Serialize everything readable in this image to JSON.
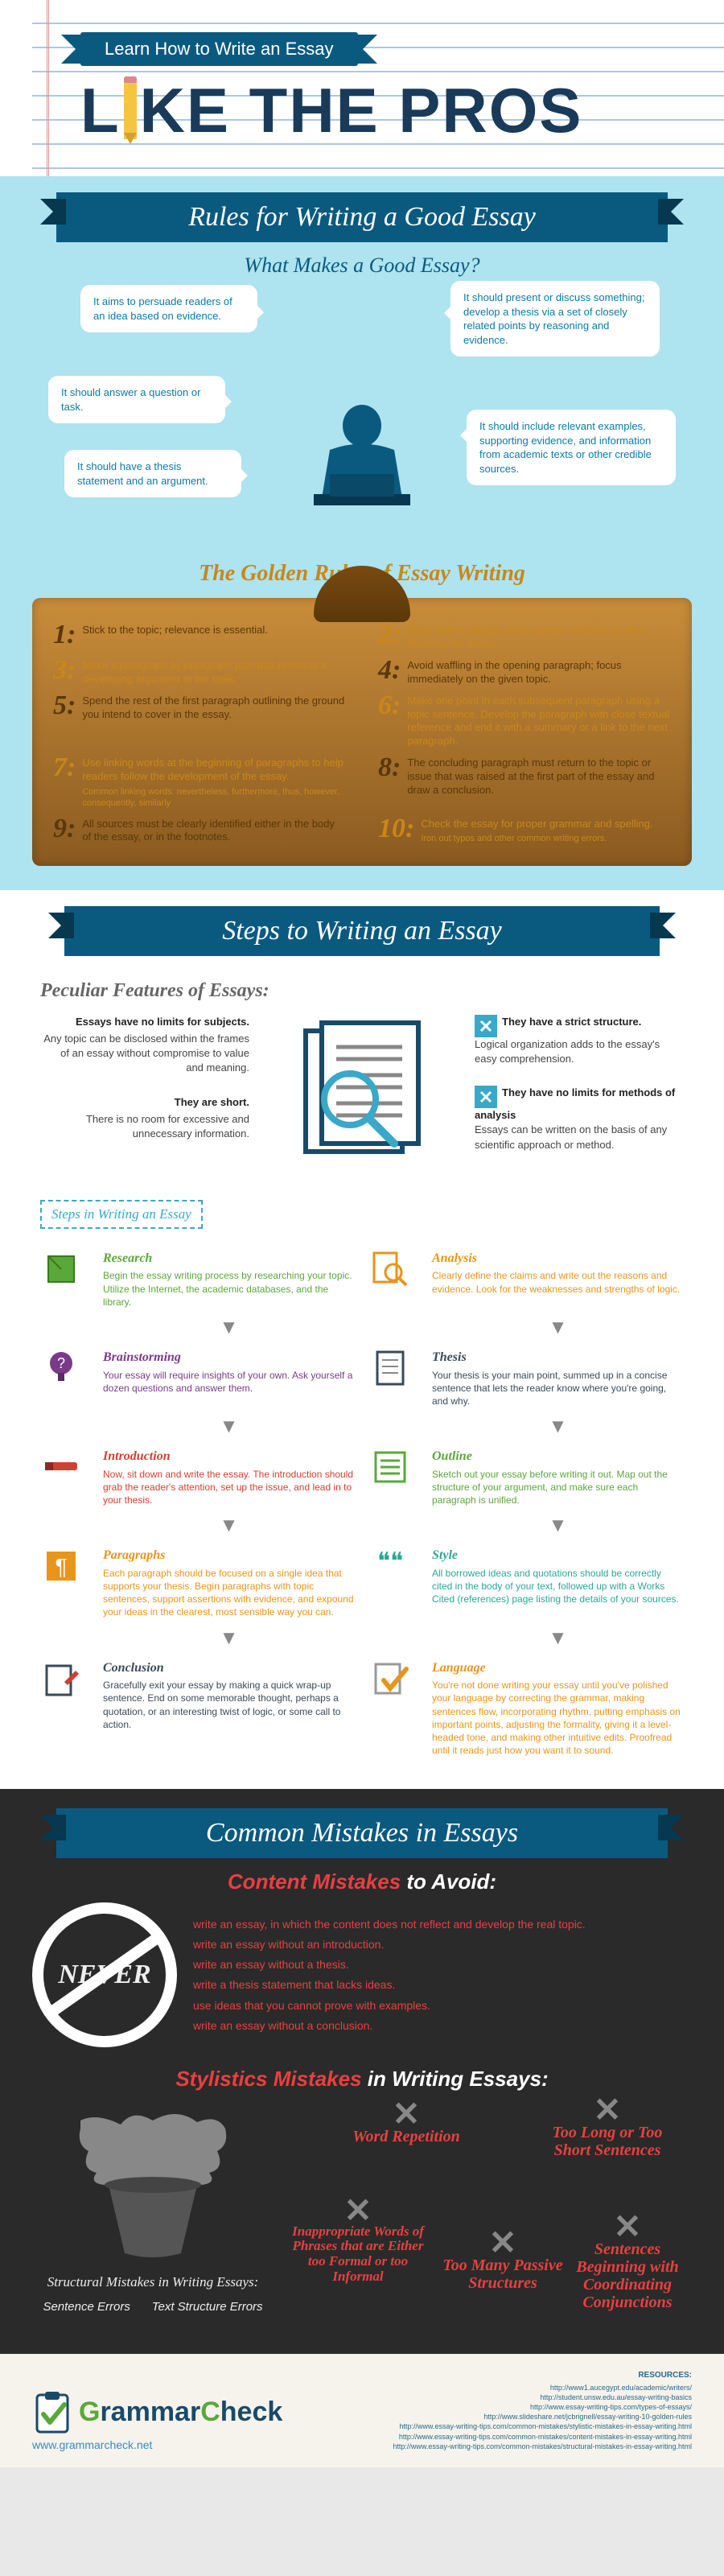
{
  "colors": {
    "navy": "#0a5a80",
    "sky": "#aee3f0",
    "cyan": "#3aa8c8",
    "gold": "#c9871a",
    "brown": "#5a380a",
    "red": "#e84040",
    "green": "#5aa83a",
    "dark": "#2a2a2a",
    "orange": "#e8951a",
    "teal": "#2aa898"
  },
  "header": {
    "ribbon": "Learn How to Write an Essay",
    "title_prefix": "L",
    "title_suffix": "KE THE PROS"
  },
  "s1": {
    "banner": "Rules for Writing a Good Essay",
    "sub1": "What Makes a Good Essay?",
    "bubbles": [
      "It aims to persuade readers of an idea based on evidence.",
      "It should present or discuss something; develop a thesis via a set of closely related points by reasoning and evidence.",
      "It should answer a question or task.",
      "It should include relevant examples, supporting evidence, and information from academic texts or other credible sources.",
      "It should have a thesis statement and an argument."
    ],
    "sub2": "The Golden Rules of Essay Writing",
    "rules": [
      {
        "n": "1:",
        "t": "Stick to the topic; relevance is essential.",
        "c": "#5a380a"
      },
      {
        "n": "2:",
        "t": "Make sure to identify the keywords to focus on when planning the essay.",
        "c": "#c9871a"
      },
      {
        "n": "3:",
        "t": "Make a paragraph by paragraph plan that presents a developing argument to the topic.",
        "c": "#c9871a"
      },
      {
        "n": "4:",
        "t": "Avoid waffling in the opening paragraph; focus immediately on the given topic.",
        "c": "#5a380a"
      },
      {
        "n": "5:",
        "t": "Spend the rest of the first paragraph outlining the ground you intend to cover in the essay.",
        "c": "#5a380a"
      },
      {
        "n": "6:",
        "t": "Make one point in each subsequent paragraph using a topic sentence. Develop the paragraph with close textual reference and end it with a summary or a link to the next paragraph.",
        "c": "#c9871a"
      },
      {
        "n": "7:",
        "t": "Use linking words at the beginning of paragraphs to help readers follow the development of the essay.",
        "note": "Common linking words: nevertheless, furthermore, thus, however, consequently, similarly",
        "c": "#c9871a"
      },
      {
        "n": "8:",
        "t": "The concluding paragraph must return to the topic or issue that was raised at the first part of the essay and draw a conclusion.",
        "c": "#5a380a"
      },
      {
        "n": "9:",
        "t": "All sources must be clearly identified either in the body of the essay, or in the footnotes.",
        "c": "#5a380a"
      },
      {
        "n": "10:",
        "t": "Check the essay for proper grammar and spelling.",
        "note": "Iron out typos and other common writing errors.",
        "c": "#c9871a"
      }
    ]
  },
  "s2": {
    "banner": "Steps to Writing an Essay",
    "pf_title": "Peculiar Features of Essays:",
    "pf_left": [
      {
        "h": "Essays have no limits for subjects.",
        "b": "Any topic can be disclosed within the frames of an essay without compromise to value and meaning."
      },
      {
        "h": "They are short.",
        "b": "There is no room for excessive and unnecessary information."
      }
    ],
    "pf_right": [
      {
        "h": "They have a strict structure.",
        "b": "Logical organization adds to the essay's easy comprehension."
      },
      {
        "h": "They have no limits for methods of analysis",
        "b": "Essays can be written on the basis of any scientific approach or method."
      }
    ],
    "steps_label": "Steps in Writing an Essay",
    "steps": [
      {
        "t": "Research",
        "b": "Begin the essay writing process by researching your topic. Utilize the Internet, the academic databases, and the library.",
        "c": "#5aa83a",
        "side": "L"
      },
      {
        "t": "Analysis",
        "b": "Clearly define the claims and write out the reasons and evidence. Look for the weaknesses and strengths of logic.",
        "c": "#e8951a",
        "side": "R"
      },
      {
        "t": "Brainstorming",
        "b": "Your essay will require insights of your own. Ask yourself a dozen questions and answer them.",
        "c": "#7a3a8a",
        "side": "L"
      },
      {
        "t": "Thesis",
        "b": "Your thesis is your main point, summed up in a concise sentence that lets the reader know where you're going, and why.",
        "c": "#3a4a5a",
        "side": "R"
      },
      {
        "t": "Introduction",
        "b": "Now, sit down and write the essay. The introduction should grab the reader's attention, set up the issue, and lead in to your thesis.",
        "c": "#d04030",
        "side": "L"
      },
      {
        "t": "Outline",
        "b": "Sketch out your essay before writing it out. Map out the structure of your argument, and make sure each paragraph is unified.",
        "c": "#5aa83a",
        "side": "R"
      },
      {
        "t": "Paragraphs",
        "b": "Each paragraph should be focused on a single idea that supports your thesis. Begin paragraphs with topic sentences, support assertions with evidence, and expound your ideas in the clearest, most sensible way you can.",
        "c": "#e8951a",
        "side": "L"
      },
      {
        "t": "Style",
        "b": "All borrowed ideas and quotations should be correctly cited in the body of your text, followed up with a Works Cited (references) page listing the details of your sources.",
        "c": "#2aa898",
        "side": "R"
      },
      {
        "t": "Conclusion",
        "b": "Gracefully exit your essay by making a quick wrap-up sentence. End on some memorable thought, perhaps a quotation, or an interesting twist of logic, or some call to action.",
        "c": "#3a4a5a",
        "side": "L"
      },
      {
        "t": "Language",
        "b": "You're not done writing your essay until you've polished your language by correcting the grammar, making sentences flow, incorporating rhythm, putting emphasis on important points, adjusting the formality, giving it a level-headed tone, and making other intuitive edits. Proofread until it reads just how you want it to sound.",
        "c": "#e8951a",
        "side": "R"
      }
    ]
  },
  "s3": {
    "banner": "Common Mistakes in Essays",
    "content_title_a": "Content Mistakes",
    "content_title_b": " to Avoid:",
    "never": "NEVER",
    "never_list": [
      "write an essay, in which the content does not reflect and develop the real topic.",
      "write an essay without an introduction.",
      "write an essay without a thesis.",
      "write a thesis statement that lacks ideas.",
      "use ideas that you cannot prove with examples.",
      "write an essay without a conclusion."
    ],
    "styl_title_a": "Stylistics Mistakes",
    "styl_title_b": " in Writing Essays:",
    "pot_title": "Structural Mistakes in Writing Essays:",
    "pot_labels": [
      "Sentence Errors",
      "Text Structure Errors"
    ],
    "styles": [
      "Word Repetition",
      "Too Long or Too Short Sentences",
      "Inappropriate Words of Phrases that are Either too Formal or too Informal",
      "Too Many Passive Structures",
      "Sentences Beginning with Coordinating Conjunctions"
    ]
  },
  "footer": {
    "brand": "GrammarCheck",
    "brand_g": "G",
    "site": "www.grammarcheck.net",
    "res_title": "RESOURCES:",
    "res": [
      "http://www1.aucegypt.edu/academic/writers/",
      "http://student.unsw.edu.au/essay-writing-basics",
      "http://www.essay-writing-tips.com/types-of-essays/",
      "http://www.slideshare.net/jcbrignell/essay-writing-10-golden-rules",
      "http://www.essay-writing-tips.com/common-mistakes/stylistic-mistakes-in-essay-writing.html",
      "http://www.essay-writing-tips.com/common-mistakes/content-mistakes-in-essay-writing.html",
      "http://www.essay-writing-tips.com/common-mistakes/structural-mistakes-in-essay-writing.html"
    ]
  }
}
